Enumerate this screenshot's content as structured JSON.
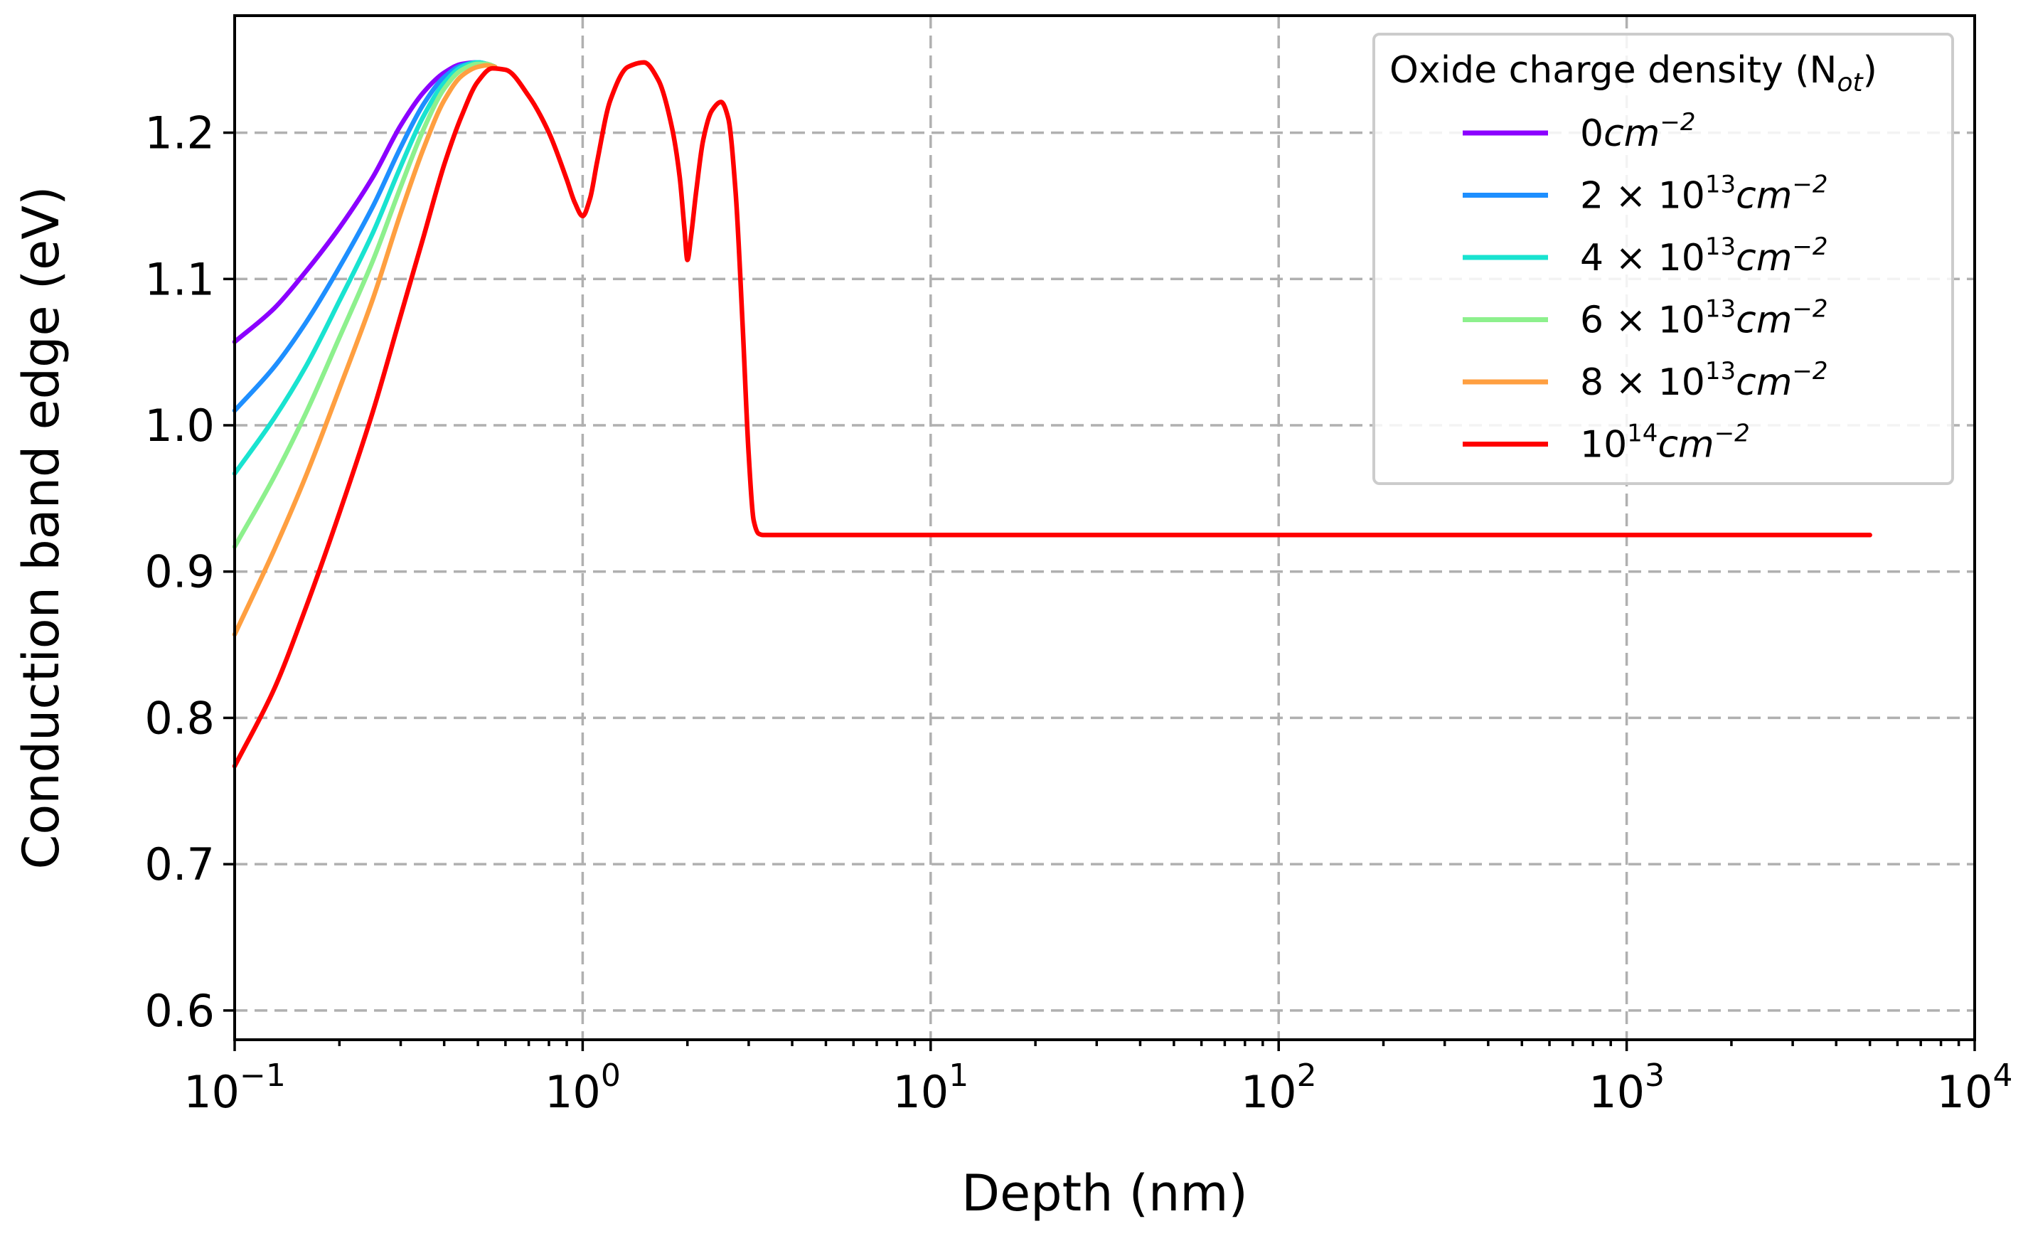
{
  "chart_data": {
    "type": "line",
    "xscale": "log",
    "xlabel": "Depth (nm)",
    "ylabel": "Conduction band edge (eV)",
    "xlim": [
      0.1,
      10000
    ],
    "ylim": [
      0.58,
      1.28
    ],
    "grid": true,
    "legend_position": "top-right",
    "legend_title": "Oxide charge density (N",
    "legend_title_sub": "ot",
    "legend_title_close": ")",
    "x_ticks": [
      {
        "value": 0.1,
        "base": "10",
        "exp": "−1"
      },
      {
        "value": 1,
        "base": "10",
        "exp": "0"
      },
      {
        "value": 10,
        "base": "10",
        "exp": "1"
      },
      {
        "value": 100,
        "base": "10",
        "exp": "2"
      },
      {
        "value": 1000,
        "base": "10",
        "exp": "3"
      },
      {
        "value": 10000,
        "base": "10",
        "exp": "4"
      }
    ],
    "y_ticks": [
      {
        "value": 0.6,
        "label": "0.6"
      },
      {
        "value": 0.7,
        "label": "0.7"
      },
      {
        "value": 0.8,
        "label": "0.8"
      },
      {
        "value": 0.9,
        "label": "0.9"
      },
      {
        "value": 1.0,
        "label": "1.0"
      },
      {
        "value": 1.1,
        "label": "1.1"
      },
      {
        "value": 1.2,
        "label": "1.2"
      }
    ],
    "series": [
      {
        "name": "0cm⁻²",
        "label": {
          "prefix": "",
          "mant": "0",
          "exp": ""
        },
        "color": "#8b00ff",
        "x": [
          0.1,
          0.13,
          0.16,
          0.2,
          0.25,
          0.3,
          0.35,
          0.4,
          0.45,
          0.5,
          0.53,
          0.56
        ],
        "y": [
          1.057,
          1.08,
          1.105,
          1.135,
          1.17,
          1.205,
          1.228,
          1.241,
          1.247,
          1.248,
          1.247,
          1.245
        ]
      },
      {
        "name": "2 × 10¹³cm⁻²",
        "label": {
          "prefix": "2 × ",
          "mant": "10",
          "exp": "13"
        },
        "color": "#1e8fff",
        "x": [
          0.1,
          0.13,
          0.16,
          0.2,
          0.25,
          0.3,
          0.35,
          0.4,
          0.45,
          0.5,
          0.53,
          0.56
        ],
        "y": [
          1.01,
          1.04,
          1.07,
          1.108,
          1.15,
          1.19,
          1.22,
          1.238,
          1.246,
          1.248,
          1.247,
          1.245
        ]
      },
      {
        "name": "4 × 10¹³cm⁻²",
        "label": {
          "prefix": "4 × ",
          "mant": "10",
          "exp": "13"
        },
        "color": "#19e3d0",
        "x": [
          0.1,
          0.13,
          0.16,
          0.2,
          0.25,
          0.3,
          0.35,
          0.4,
          0.45,
          0.5,
          0.53,
          0.56
        ],
        "y": [
          0.967,
          1.005,
          1.04,
          1.085,
          1.132,
          1.177,
          1.212,
          1.234,
          1.245,
          1.248,
          1.247,
          1.245
        ]
      },
      {
        "name": "6 × 10¹³cm⁻²",
        "label": {
          "prefix": "6 × ",
          "mant": "10",
          "exp": "13"
        },
        "color": "#8df08d",
        "x": [
          0.1,
          0.13,
          0.16,
          0.2,
          0.25,
          0.3,
          0.35,
          0.4,
          0.45,
          0.5,
          0.53,
          0.56
        ],
        "y": [
          0.917,
          0.965,
          1.008,
          1.06,
          1.113,
          1.163,
          1.203,
          1.23,
          1.243,
          1.247,
          1.247,
          1.245
        ]
      },
      {
        "name": "8 × 10¹³cm⁻²",
        "label": {
          "prefix": "8 × ",
          "mant": "10",
          "exp": "13"
        },
        "color": "#ff9f40",
        "x": [
          0.1,
          0.13,
          0.16,
          0.2,
          0.25,
          0.3,
          0.35,
          0.4,
          0.45,
          0.5,
          0.53,
          0.56
        ],
        "y": [
          0.857,
          0.915,
          0.965,
          1.025,
          1.087,
          1.145,
          1.19,
          1.222,
          1.239,
          1.245,
          1.246,
          1.245
        ]
      },
      {
        "name": "10¹⁴cm⁻²",
        "label": {
          "prefix": "",
          "mant": "10",
          "exp": "14"
        },
        "color": "#ff0000",
        "x": [
          0.1,
          0.13,
          0.16,
          0.2,
          0.25,
          0.3,
          0.35,
          0.4,
          0.45,
          0.5,
          0.55,
          0.6,
          0.7,
          0.8,
          0.9,
          0.95,
          1.0,
          1.05,
          1.1,
          1.2,
          1.35,
          1.5,
          1.65,
          1.8,
          1.9,
          1.96,
          2.0,
          2.05,
          2.12,
          2.22,
          2.35,
          2.5,
          2.62,
          2.75,
          2.88,
          3.0,
          3.1,
          3.2,
          3.3,
          3.5,
          10,
          100,
          1000,
          5000
        ],
        "y": [
          0.767,
          0.82,
          0.875,
          0.94,
          1.01,
          1.075,
          1.13,
          1.178,
          1.212,
          1.235,
          1.244,
          1.243,
          1.225,
          1.2,
          1.168,
          1.152,
          1.143,
          1.155,
          1.18,
          1.222,
          1.245,
          1.248,
          1.236,
          1.205,
          1.17,
          1.135,
          1.113,
          1.13,
          1.16,
          1.195,
          1.215,
          1.221,
          1.21,
          1.16,
          1.07,
          0.98,
          0.935,
          0.926,
          0.925,
          0.925,
          0.925,
          0.925,
          0.925,
          0.925
        ]
      }
    ]
  }
}
